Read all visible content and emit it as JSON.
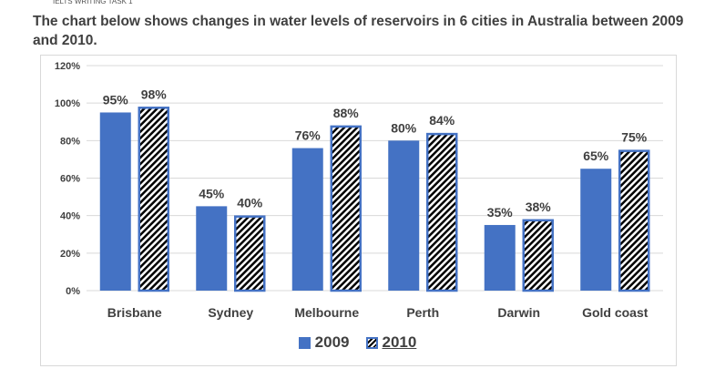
{
  "header": {
    "caption": "The chart below shows changes in water levels of reservoirs in 6 cities in Australia between 2009 and 2010."
  },
  "colors": {
    "series_2009": "#4472c4",
    "series_2010_border": "#4472c4",
    "series_2010_hatch": "#000000",
    "text": "#404040",
    "grid": "#d9d9d9"
  },
  "chart_data": {
    "type": "bar",
    "title": "",
    "xlabel": "",
    "ylabel": "",
    "ylim": [
      0,
      120
    ],
    "yticks": [
      0,
      20,
      40,
      60,
      80,
      100,
      120
    ],
    "ytick_labels": [
      "0%",
      "20%",
      "40%",
      "60%",
      "80%",
      "100%",
      "120%"
    ],
    "categories": [
      "Brisbane",
      "Sydney",
      "Melbourne",
      "Perth",
      "Darwin",
      "Gold coast"
    ],
    "series": [
      {
        "name": "2009",
        "values": [
          95,
          45,
          76,
          80,
          35,
          65
        ],
        "labels": [
          "95%",
          "45%",
          "76%",
          "80%",
          "35%",
          "65%"
        ]
      },
      {
        "name": "2010",
        "values": [
          98,
          40,
          88,
          84,
          38,
          75
        ],
        "labels": [
          "98%",
          "40%",
          "88%",
          "84%",
          "38%",
          "75%"
        ]
      }
    ],
    "legend": {
      "position": "bottom",
      "labels": [
        "2009",
        "2010"
      ]
    }
  }
}
